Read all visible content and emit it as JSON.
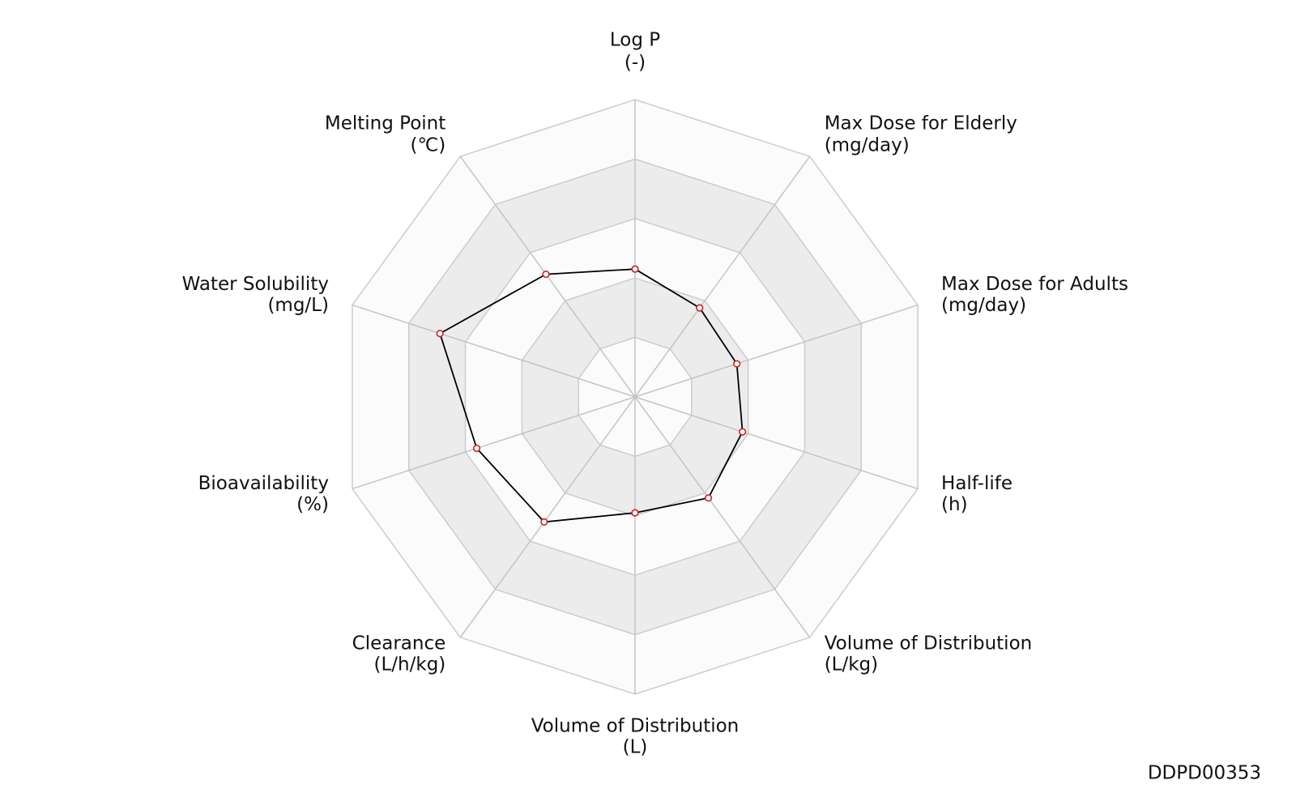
{
  "chart_data": {
    "type": "radar",
    "categories": [
      "Log P",
      "Max Dose for Elderly",
      "Max Dose for Adults",
      "Half-life",
      "Volume of Distribution",
      "Volume of Distribution",
      "Clearance",
      "Bioavailability",
      "Water Solubility",
      "Melting Point"
    ],
    "units": [
      "(-)",
      "(mg/day)",
      "(mg/day)",
      "(h)",
      "(L/kg)",
      "(L)",
      "(L/h/kg)",
      "(%)",
      "(mg/L)",
      "(℃)"
    ],
    "values": [
      0.43,
      0.37,
      0.36,
      0.38,
      0.42,
      0.39,
      0.52,
      0.56,
      0.69,
      0.51
    ],
    "color": "#000000",
    "marker_color": "#cc2222",
    "rlim": [
      0,
      1
    ],
    "rticks": [
      0.2,
      0.4,
      0.6,
      0.8,
      1.0
    ],
    "grid": true
  },
  "footer": "DDPD00353"
}
